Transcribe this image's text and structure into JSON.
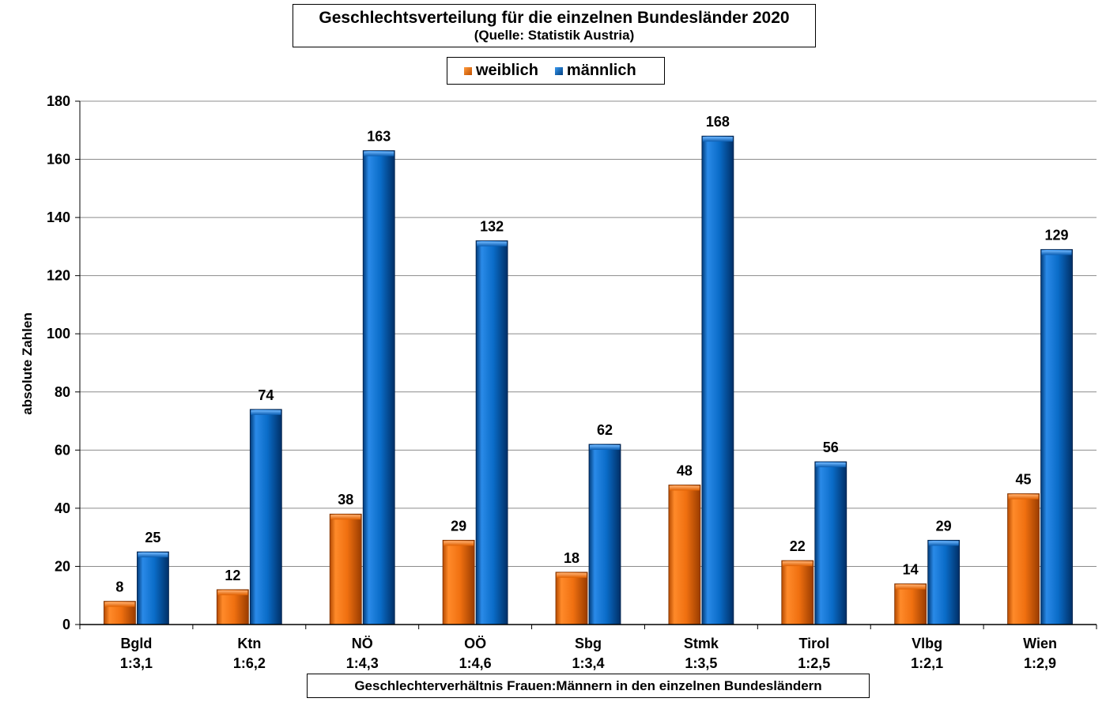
{
  "chart_data": {
    "type": "bar",
    "title": "Geschlechtsverteilung für die einzelnen Bundesländer 2020",
    "subtitle": "(Quelle: Statistik Austria)",
    "ylabel": "absolute Zahlen",
    "xlabel": "Geschlechterverhältnis Frauen:Männern in den einzelnen Bundesländern",
    "ylim": [
      0,
      180
    ],
    "yticks": [
      0,
      20,
      40,
      60,
      80,
      100,
      120,
      140,
      160,
      180
    ],
    "categories": [
      "Bgld",
      "Ktn",
      "NÖ",
      "OÖ",
      "Sbg",
      "Stmk",
      "Tirol",
      "Vlbg",
      "Wien"
    ],
    "ratios": [
      "1:3,1",
      "1:6,2",
      "1:4,3",
      "1:4,6",
      "1:3,4",
      "1:3,5",
      "1:2,5",
      "1:2,1",
      "1:2,9"
    ],
    "series": [
      {
        "name": "weiblich",
        "color": "#f07010",
        "values": [
          8,
          12,
          38,
          29,
          18,
          48,
          22,
          14,
          45
        ]
      },
      {
        "name": "männlich",
        "color": "#0a6cc8",
        "values": [
          25,
          74,
          163,
          132,
          62,
          168,
          56,
          29,
          129
        ]
      }
    ],
    "grid": true,
    "legend": "top-center"
  }
}
